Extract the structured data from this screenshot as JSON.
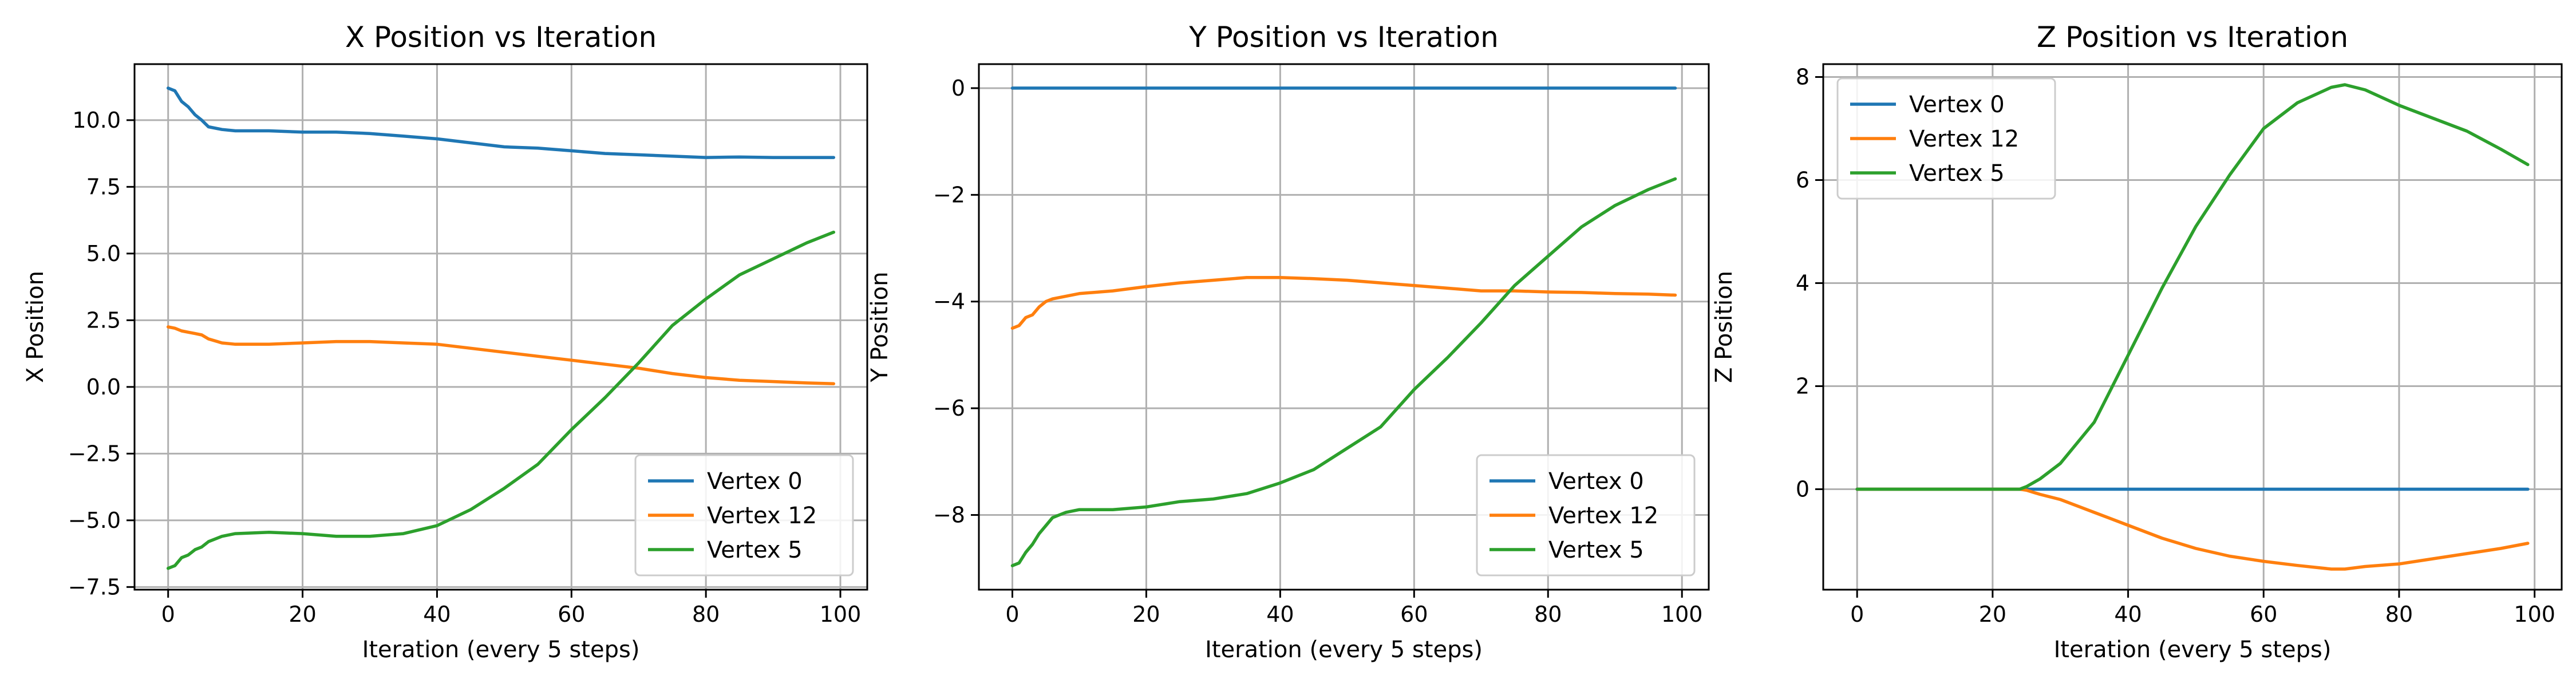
{
  "chart_data": [
    {
      "type": "line",
      "title": "X Position vs Iteration",
      "xlabel": "Iteration (every 5 steps)",
      "ylabel": "X Position",
      "xlim": [
        -5,
        104
      ],
      "ylim": [
        -7.6,
        12.1
      ],
      "xticks": [
        0,
        20,
        40,
        60,
        80,
        100
      ],
      "xtick_labels": [
        "0",
        "20",
        "40",
        "60",
        "80",
        "100"
      ],
      "yticks": [
        -7.5,
        -5.0,
        -2.5,
        0.0,
        2.5,
        5.0,
        7.5,
        10.0
      ],
      "ytick_labels": [
        "−7.5",
        "−5.0",
        "−2.5",
        "0.0",
        "2.5",
        "5.0",
        "7.5",
        "10.0"
      ],
      "grid": true,
      "legend_position": "lower-right",
      "series": [
        {
          "name": "Vertex 0",
          "color": "#1f77b4",
          "x": [
            0,
            1,
            2,
            3,
            4,
            5,
            6,
            8,
            10,
            15,
            20,
            25,
            30,
            35,
            40,
            45,
            50,
            55,
            60,
            65,
            70,
            75,
            80,
            85,
            90,
            95,
            99
          ],
          "y": [
            11.2,
            11.1,
            10.7,
            10.5,
            10.2,
            10.0,
            9.75,
            9.65,
            9.6,
            9.6,
            9.55,
            9.55,
            9.5,
            9.4,
            9.3,
            9.15,
            9.0,
            8.95,
            8.85,
            8.75,
            8.7,
            8.65,
            8.6,
            8.62,
            8.6,
            8.6,
            8.6
          ]
        },
        {
          "name": "Vertex 12",
          "color": "#ff7f0e",
          "x": [
            0,
            1,
            2,
            3,
            4,
            5,
            6,
            8,
            10,
            15,
            20,
            25,
            30,
            35,
            40,
            45,
            50,
            55,
            60,
            65,
            70,
            75,
            80,
            85,
            90,
            95,
            99
          ],
          "y": [
            2.25,
            2.2,
            2.1,
            2.05,
            2.0,
            1.95,
            1.8,
            1.65,
            1.6,
            1.6,
            1.65,
            1.7,
            1.7,
            1.65,
            1.6,
            1.45,
            1.3,
            1.15,
            1.0,
            0.85,
            0.7,
            0.5,
            0.35,
            0.25,
            0.2,
            0.15,
            0.12
          ]
        },
        {
          "name": "Vertex 5",
          "color": "#2ca02c",
          "x": [
            0,
            1,
            2,
            3,
            4,
            5,
            6,
            8,
            10,
            15,
            20,
            25,
            30,
            35,
            40,
            45,
            50,
            55,
            60,
            65,
            70,
            75,
            80,
            85,
            90,
            95,
            99
          ],
          "y": [
            -6.8,
            -6.7,
            -6.4,
            -6.3,
            -6.1,
            -6.0,
            -5.8,
            -5.6,
            -5.5,
            -5.45,
            -5.5,
            -5.6,
            -5.6,
            -5.5,
            -5.2,
            -4.6,
            -3.8,
            -2.9,
            -1.6,
            -0.4,
            0.9,
            2.3,
            3.3,
            4.2,
            4.8,
            5.4,
            5.8
          ]
        }
      ]
    },
    {
      "type": "line",
      "title": "Y Position vs Iteration",
      "xlabel": "Iteration (every 5 steps)",
      "ylabel": "Y Position",
      "xlim": [
        -5,
        104
      ],
      "ylim": [
        -9.4,
        0.45
      ],
      "xticks": [
        0,
        20,
        40,
        60,
        80,
        100
      ],
      "xtick_labels": [
        "0",
        "20",
        "40",
        "60",
        "80",
        "100"
      ],
      "yticks": [
        -8,
        -6,
        -4,
        -2,
        0
      ],
      "ytick_labels": [
        "−8",
        "−6",
        "−4",
        "−2",
        "0"
      ],
      "grid": true,
      "legend_position": "lower-right",
      "series": [
        {
          "name": "Vertex 0",
          "color": "#1f77b4",
          "x": [
            0,
            99
          ],
          "y": [
            0,
            0
          ]
        },
        {
          "name": "Vertex 12",
          "color": "#ff7f0e",
          "x": [
            0,
            1,
            2,
            3,
            4,
            5,
            6,
            8,
            10,
            15,
            20,
            25,
            30,
            35,
            40,
            45,
            50,
            55,
            60,
            65,
            70,
            75,
            80,
            85,
            90,
            95,
            99
          ],
          "y": [
            -4.5,
            -4.45,
            -4.3,
            -4.25,
            -4.1,
            -4.0,
            -3.95,
            -3.9,
            -3.85,
            -3.8,
            -3.72,
            -3.65,
            -3.6,
            -3.55,
            -3.55,
            -3.57,
            -3.6,
            -3.65,
            -3.7,
            -3.75,
            -3.8,
            -3.8,
            -3.82,
            -3.83,
            -3.85,
            -3.86,
            -3.88
          ]
        },
        {
          "name": "Vertex 5",
          "color": "#2ca02c",
          "x": [
            0,
            1,
            2,
            3,
            4,
            5,
            6,
            7,
            8,
            10,
            15,
            20,
            25,
            30,
            35,
            40,
            45,
            50,
            55,
            60,
            65,
            70,
            75,
            80,
            85,
            90,
            95,
            99
          ],
          "y": [
            -8.95,
            -8.9,
            -8.7,
            -8.55,
            -8.35,
            -8.2,
            -8.05,
            -8.0,
            -7.95,
            -7.9,
            -7.9,
            -7.85,
            -7.75,
            -7.7,
            -7.6,
            -7.4,
            -7.15,
            -6.75,
            -6.35,
            -5.65,
            -5.05,
            -4.4,
            -3.7,
            -3.15,
            -2.6,
            -2.2,
            -1.9,
            -1.7
          ]
        }
      ]
    },
    {
      "type": "line",
      "title": "Z Position vs Iteration",
      "xlabel": "Iteration (every 5 steps)",
      "ylabel": "Z Position",
      "xlim": [
        -5,
        104
      ],
      "ylim": [
        -1.95,
        8.25
      ],
      "xticks": [
        0,
        20,
        40,
        60,
        80,
        100
      ],
      "xtick_labels": [
        "0",
        "20",
        "40",
        "60",
        "80",
        "100"
      ],
      "yticks": [
        0,
        2,
        4,
        6,
        8
      ],
      "ytick_labels": [
        "0",
        "2",
        "4",
        "6",
        "8"
      ],
      "grid": true,
      "legend_position": "upper-left",
      "series": [
        {
          "name": "Vertex 0",
          "color": "#1f77b4",
          "x": [
            0,
            99
          ],
          "y": [
            0,
            0
          ]
        },
        {
          "name": "Vertex 12",
          "color": "#ff7f0e",
          "x": [
            0,
            5,
            10,
            15,
            20,
            24,
            25,
            27,
            30,
            35,
            40,
            45,
            50,
            55,
            60,
            65,
            70,
            72,
            75,
            80,
            85,
            90,
            95,
            99
          ],
          "y": [
            0,
            0,
            0,
            0,
            0,
            0,
            -0.02,
            -0.1,
            -0.2,
            -0.45,
            -0.7,
            -0.95,
            -1.15,
            -1.3,
            -1.4,
            -1.48,
            -1.55,
            -1.55,
            -1.5,
            -1.45,
            -1.35,
            -1.25,
            -1.15,
            -1.05
          ]
        },
        {
          "name": "Vertex 5",
          "color": "#2ca02c",
          "x": [
            0,
            5,
            10,
            15,
            20,
            24,
            25,
            27,
            30,
            35,
            40,
            45,
            50,
            55,
            60,
            65,
            70,
            72,
            75,
            80,
            85,
            90,
            95,
            99
          ],
          "y": [
            0,
            0,
            0,
            0,
            0,
            0,
            0.05,
            0.2,
            0.5,
            1.3,
            2.6,
            3.9,
            5.1,
            6.1,
            7.0,
            7.5,
            7.8,
            7.85,
            7.75,
            7.45,
            7.2,
            6.95,
            6.6,
            6.3
          ]
        }
      ]
    }
  ]
}
